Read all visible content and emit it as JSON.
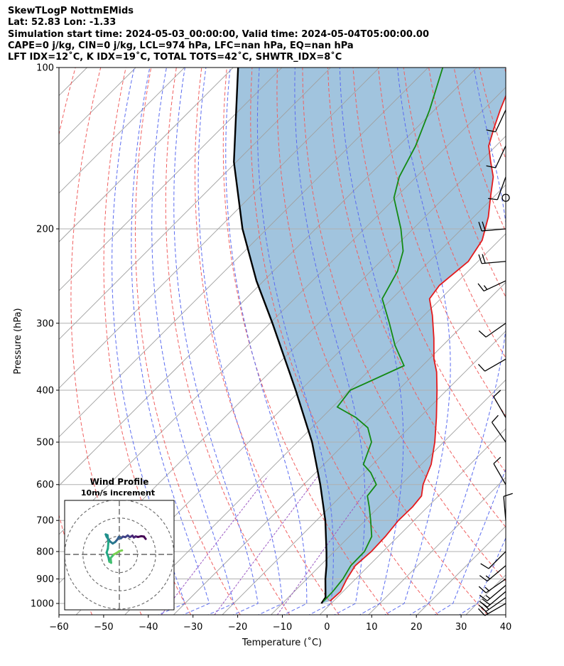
{
  "header": {
    "title": "SkewTLogP NottmEMids",
    "location": "Lat: 52.83   Lon: -1.33",
    "times": "Simulation start time: 2024-05-03_00:00:00, Valid time: 2024-05-04T05:00:00.00",
    "indices1": "CAPE=0 j/kg, CIN=0 j/kg, LCL=974 hPa, LFC=nan hPa, EQ=nan hPa",
    "indices2": "LFT IDX=12˚C, K IDX=19˚C, TOTAL TOTS=42˚C, SHWTR_IDX=8˚C"
  },
  "colors": {
    "temperature": "#e41a1c",
    "dewpoint": "#138a13",
    "parcel": "#000000",
    "cape_fill": "#6fa5cd",
    "dry_adiabat": "#f06060",
    "moist_adiabat": "#5b6cf0",
    "mixing_ratio": "#9a58c2",
    "isotherm": "#a0a0a0",
    "grid": "#b0b0b0"
  },
  "chart_data": {
    "type": "skew-t log-p",
    "xlabel": "Temperature (˚C)",
    "ylabel": "Pressure (hPa)",
    "xlim": [
      -60,
      40
    ],
    "ylim": [
      1050,
      100
    ],
    "x_ticks": [
      -60,
      -50,
      -40,
      -30,
      -20,
      -10,
      0,
      10,
      20,
      30,
      40
    ],
    "y_ticks": [
      100,
      200,
      300,
      400,
      500,
      600,
      700,
      800,
      900,
      1000
    ],
    "temperature_profile": [
      {
        "p": 990,
        "t": 9.3
      },
      {
        "p": 950,
        "t": 9.5
      },
      {
        "p": 900,
        "t": 8.2
      },
      {
        "p": 850,
        "t": 7.2
      },
      {
        "p": 800,
        "t": 7.6
      },
      {
        "p": 750,
        "t": 7.4
      },
      {
        "p": 700,
        "t": 6.8
      },
      {
        "p": 660,
        "t": 6.9
      },
      {
        "p": 630,
        "t": 6.5
      },
      {
        "p": 600,
        "t": 4.5
      },
      {
        "p": 550,
        "t": 2.0
      },
      {
        "p": 500,
        "t": -1.8
      },
      {
        "p": 450,
        "t": -6.5
      },
      {
        "p": 400,
        "t": -12.0
      },
      {
        "p": 370,
        "t": -15.8
      },
      {
        "p": 350,
        "t": -19.0
      },
      {
        "p": 320,
        "t": -23.3
      },
      {
        "p": 290,
        "t": -28.3
      },
      {
        "p": 270,
        "t": -32.3
      },
      {
        "p": 255,
        "t": -33.0
      },
      {
        "p": 230,
        "t": -32.0
      },
      {
        "p": 210,
        "t": -33.5
      },
      {
        "p": 190,
        "t": -37.0
      },
      {
        "p": 175,
        "t": -40.5
      },
      {
        "p": 160,
        "t": -44.2
      },
      {
        "p": 150,
        "t": -47.8
      },
      {
        "p": 140,
        "t": -51.5
      },
      {
        "p": 130,
        "t": -54.0
      },
      {
        "p": 120,
        "t": -56.5
      },
      {
        "p": 110,
        "t": -59.0
      },
      {
        "p": 100,
        "t": -60.5
      }
    ],
    "dewpoint_profile": [
      {
        "p": 990,
        "t": 8.0
      },
      {
        "p": 950,
        "t": 7.9
      },
      {
        "p": 900,
        "t": 7.4
      },
      {
        "p": 850,
        "t": 6.3
      },
      {
        "p": 800,
        "t": 6.2
      },
      {
        "p": 750,
        "t": 4.6
      },
      {
        "p": 700,
        "t": 1.1
      },
      {
        "p": 660,
        "t": -2.0
      },
      {
        "p": 630,
        "t": -4.6
      },
      {
        "p": 600,
        "t": -5.1
      },
      {
        "p": 570,
        "t": -8.7
      },
      {
        "p": 550,
        "t": -11.9
      },
      {
        "p": 500,
        "t": -14.8
      },
      {
        "p": 470,
        "t": -18.5
      },
      {
        "p": 450,
        "t": -23.0
      },
      {
        "p": 430,
        "t": -29.0
      },
      {
        "p": 400,
        "t": -29.8
      },
      {
        "p": 360,
        "t": -23.8
      },
      {
        "p": 330,
        "t": -29.8
      },
      {
        "p": 300,
        "t": -35.5
      },
      {
        "p": 270,
        "t": -42.0
      },
      {
        "p": 240,
        "t": -44.5
      },
      {
        "p": 220,
        "t": -47.5
      },
      {
        "p": 200,
        "t": -52.5
      },
      {
        "p": 175,
        "t": -60.3
      },
      {
        "p": 160,
        "t": -63.5
      },
      {
        "p": 140,
        "t": -66.5
      },
      {
        "p": 120,
        "t": -71.0
      },
      {
        "p": 100,
        "t": -77.0
      }
    ],
    "parcel_profile": [
      {
        "p": 1000,
        "t": 8.0
      },
      {
        "p": 974,
        "t": 7.6
      },
      {
        "p": 900,
        "t": 3.8
      },
      {
        "p": 850,
        "t": 1.3
      },
      {
        "p": 800,
        "t": -1.6
      },
      {
        "p": 700,
        "t": -8.2
      },
      {
        "p": 600,
        "t": -16.6
      },
      {
        "p": 500,
        "t": -27.0
      },
      {
        "p": 400,
        "t": -41.0
      },
      {
        "p": 300,
        "t": -59.5
      },
      {
        "p": 250,
        "t": -71.5
      },
      {
        "p": 200,
        "t": -85.0
      },
      {
        "p": 150,
        "t": -100.5
      },
      {
        "p": 100,
        "t": -119.0
      }
    ],
    "wind_barbs": [
      {
        "p": 1000,
        "speed_kt": 20,
        "dir": 240
      },
      {
        "p": 975,
        "speed_kt": 20,
        "dir": 235
      },
      {
        "p": 950,
        "speed_kt": 20,
        "dir": 230
      },
      {
        "p": 925,
        "speed_kt": 15,
        "dir": 230
      },
      {
        "p": 900,
        "speed_kt": 15,
        "dir": 235
      },
      {
        "p": 850,
        "speed_kt": 15,
        "dir": 230
      },
      {
        "p": 800,
        "speed_kt": 10,
        "dir": 225
      },
      {
        "p": 700,
        "speed_kt": 10,
        "dir": 355
      },
      {
        "p": 600,
        "speed_kt": 10,
        "dir": 330
      },
      {
        "p": 500,
        "speed_kt": 10,
        "dir": 325
      },
      {
        "p": 450,
        "speed_kt": 10,
        "dir": 330
      },
      {
        "p": 350,
        "speed_kt": 10,
        "dir": 240
      },
      {
        "p": 300,
        "speed_kt": 10,
        "dir": 235
      },
      {
        "p": 250,
        "speed_kt": 15,
        "dir": 245
      },
      {
        "p": 230,
        "speed_kt": 20,
        "dir": 265
      },
      {
        "p": 200,
        "speed_kt": 20,
        "dir": 265
      },
      {
        "p": 175,
        "speed_kt": 0,
        "dir": 0
      },
      {
        "p": 160,
        "speed_kt": 10,
        "dir": 200
      },
      {
        "p": 140,
        "speed_kt": 10,
        "dir": 205
      },
      {
        "p": 120,
        "speed_kt": 10,
        "dir": 205
      }
    ],
    "hodograph": {
      "title": "Wind Profile",
      "subtitle": "10m/s increment",
      "rings_ms": [
        10,
        20,
        30
      ],
      "uv_ms": [
        [
          14.5,
          8.5
        ],
        [
          13.5,
          9.8
        ],
        [
          12.0,
          10.0
        ],
        [
          10.3,
          9.6
        ],
        [
          9.0,
          9.9
        ],
        [
          8.0,
          9.3
        ],
        [
          7.2,
          10.3
        ],
        [
          5.8,
          9.5
        ],
        [
          4.6,
          10.4
        ],
        [
          3.3,
          9.5
        ],
        [
          2.0,
          9.8
        ],
        [
          0.8,
          8.8
        ],
        [
          -0.3,
          9.6
        ],
        [
          -1.0,
          8.3
        ],
        [
          -2.3,
          6.8
        ],
        [
          -3.6,
          6.0
        ],
        [
          -5.0,
          7.0
        ],
        [
          -6.0,
          8.3
        ],
        [
          -7.0,
          9.7
        ],
        [
          -7.5,
          11.0
        ],
        [
          -6.5,
          10.6
        ],
        [
          -6.0,
          7.0
        ],
        [
          -6.3,
          3.2
        ],
        [
          -7.0,
          1.0
        ],
        [
          -6.0,
          -1.5
        ],
        [
          -5.5,
          -4.0
        ],
        [
          -4.5,
          -4.6
        ],
        [
          -4.8,
          -2.0
        ],
        [
          -3.0,
          0.0
        ],
        [
          -1.8,
          0.6
        ],
        [
          0.0,
          1.8
        ],
        [
          1.5,
          2.2
        ]
      ]
    }
  }
}
